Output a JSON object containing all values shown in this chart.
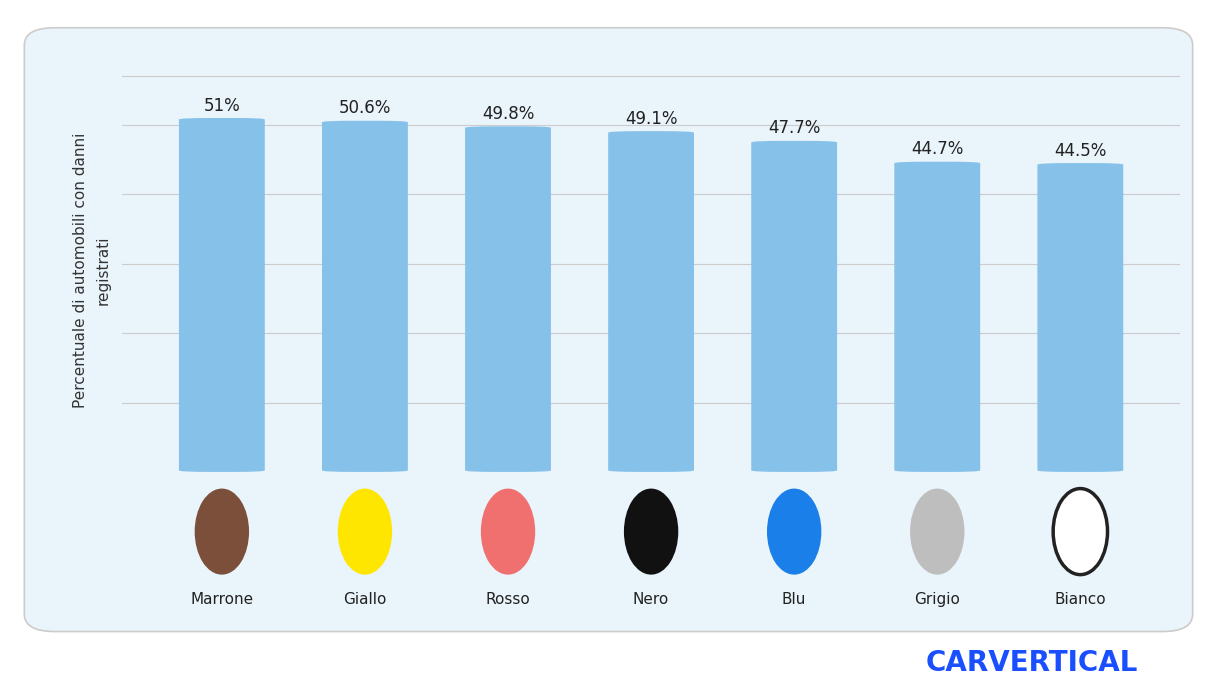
{
  "categories": [
    "Marrone",
    "Giallo",
    "Rosso",
    "Nero",
    "Blu",
    "Grigio",
    "Bianco"
  ],
  "values": [
    51.0,
    50.6,
    49.8,
    49.1,
    47.7,
    44.7,
    44.5
  ],
  "labels": [
    "51%",
    "50.6%",
    "49.8%",
    "49.1%",
    "47.7%",
    "44.7%",
    "44.5%"
  ],
  "bar_color": "#85C1E9",
  "background_card": "#EAF4FB",
  "background_outer": "#FFFFFF",
  "circle_colors": [
    "#7B4F3A",
    "#FFE600",
    "#F07070",
    "#111111",
    "#1A7FE8",
    "#BEBEBE",
    "#FFFFFF"
  ],
  "circle_edge_colors": [
    "#7B4F3A",
    "#FFE600",
    "#F07070",
    "#111111",
    "#1A7FE8",
    "#BEBEBE",
    "#222222"
  ],
  "circle_edge_widths": [
    0,
    0,
    0,
    0,
    0,
    0,
    2.5
  ],
  "ylabel": "Percentuale di automobili con danni\nregistrati",
  "ylim_min": 0,
  "ylim_max": 58,
  "bar_width": 0.6,
  "brand_color": "#1A4FFF",
  "brand_fontsize": 20,
  "label_fontsize": 12,
  "ylabel_fontsize": 11,
  "tick_fontsize": 11,
  "grid_color": "#CCCCCC",
  "grid_linewidth": 0.8
}
